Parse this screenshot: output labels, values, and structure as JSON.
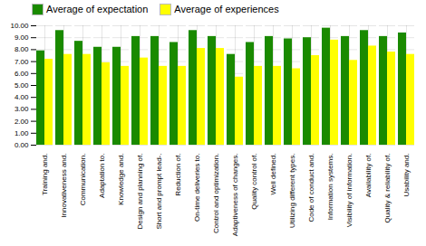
{
  "chart_data": {
    "type": "bar",
    "categories": [
      "Training and.",
      "Innovativeness and.",
      "Communication.",
      "Adaptation to.",
      "Knowledge and.",
      "Design and planning of.",
      "Short and prompt lead-.",
      "Reduction of.",
      "On-time deliveries to.",
      "Control and optimization.",
      "Adaptiveness of changes.",
      "Quality control of.",
      "Well defined.",
      "Utilizing different types.",
      "Code of conduct and.",
      "Information systems.",
      "Visibility of information.",
      "Availability of.",
      "Quality & reliability of.",
      "Usability and."
    ],
    "series": [
      {
        "name": "Average of expectation",
        "color": "#1a8a00",
        "values": [
          7.9,
          9.6,
          8.7,
          8.2,
          8.2,
          9.1,
          9.1,
          8.6,
          9.6,
          9.1,
          7.6,
          8.6,
          9.1,
          8.9,
          9.0,
          9.8,
          9.1,
          9.6,
          9.1,
          9.4
        ]
      },
      {
        "name": "Average of experiences",
        "color": "#ffff00",
        "values": [
          7.2,
          7.6,
          7.6,
          6.9,
          6.6,
          7.3,
          6.6,
          6.6,
          8.1,
          8.1,
          5.7,
          6.6,
          6.6,
          6.4,
          7.5,
          8.8,
          7.1,
          8.3,
          7.8,
          7.6
        ]
      }
    ],
    "ylim": [
      0,
      10.0
    ],
    "yticks": [
      {
        "value": 0.0,
        "label": "0.00"
      },
      {
        "value": 1.0,
        "label": "1.00"
      },
      {
        "value": 2.0,
        "label": "2.00"
      },
      {
        "value": 3.0,
        "label": "3.00"
      },
      {
        "value": 4.0,
        "label": "4.00"
      },
      {
        "value": 5.0,
        "label": "5.00"
      },
      {
        "value": 6.0,
        "label": "6.00"
      },
      {
        "value": 7.0,
        "label": "7.00"
      },
      {
        "value": 8.0,
        "label": "8.00"
      },
      {
        "value": 9.0,
        "label": "9.00"
      },
      {
        "value": 10.0,
        "label": "10.00"
      }
    ],
    "grid": true,
    "legend": "upper left"
  }
}
